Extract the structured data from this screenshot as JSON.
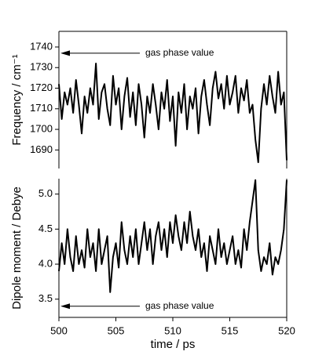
{
  "chart_data": [
    {
      "type": "line",
      "ylabel": "Frequency / cm⁻¹",
      "x": [
        500,
        500.25,
        500.5,
        500.75,
        501,
        501.25,
        501.5,
        501.75,
        502,
        502.25,
        502.5,
        502.75,
        503,
        503.25,
        503.5,
        503.75,
        504,
        504.25,
        504.5,
        504.75,
        505,
        505.25,
        505.5,
        505.75,
        506,
        506.25,
        506.5,
        506.75,
        507,
        507.25,
        507.5,
        507.75,
        508,
        508.25,
        508.5,
        508.75,
        509,
        509.25,
        509.5,
        509.75,
        510,
        510.25,
        510.5,
        510.75,
        511,
        511.25,
        511.5,
        511.75,
        512,
        512.25,
        512.5,
        512.75,
        513,
        513.25,
        513.5,
        513.75,
        514,
        514.25,
        514.5,
        514.75,
        515,
        515.25,
        515.5,
        515.75,
        516,
        516.25,
        516.5,
        516.75,
        517,
        517.25,
        517.5,
        517.75,
        518,
        518.25,
        518.5,
        518.75,
        519,
        519.25,
        519.5,
        519.75,
        520
      ],
      "values": [
        1722,
        1705,
        1718,
        1712,
        1720,
        1708,
        1724,
        1712,
        1698,
        1716,
        1708,
        1720,
        1712,
        1732,
        1705,
        1718,
        1722,
        1710,
        1702,
        1726,
        1712,
        1720,
        1700,
        1716,
        1725,
        1706,
        1718,
        1702,
        1722,
        1712,
        1696,
        1716,
        1708,
        1722,
        1712,
        1700,
        1718,
        1710,
        1724,
        1704,
        1716,
        1692,
        1718,
        1708,
        1722,
        1700,
        1716,
        1710,
        1720,
        1698,
        1716,
        1724,
        1712,
        1702,
        1720,
        1728,
        1715,
        1722,
        1710,
        1726,
        1712,
        1718,
        1726,
        1708,
        1720,
        1714,
        1724,
        1708,
        1712,
        1695,
        1684,
        1710,
        1722,
        1712,
        1726,
        1716,
        1708,
        1728,
        1712,
        1718,
        1685
      ],
      "color": "#000000",
      "xlim": [
        500,
        520
      ],
      "ylim": [
        1681,
        1747.6
      ],
      "yticks": [
        1690,
        1700,
        1710,
        1720,
        1730,
        1740
      ],
      "annotations": [
        {
          "text": "gas phase value",
          "y": 1737
        }
      ]
    },
    {
      "type": "line",
      "ylabel": "Dipole moment / Debye",
      "xlabel": "time / ps",
      "x": [
        500,
        500.25,
        500.5,
        500.75,
        501,
        501.25,
        501.5,
        501.75,
        502,
        502.25,
        502.5,
        502.75,
        503,
        503.25,
        503.5,
        503.75,
        504,
        504.25,
        504.5,
        504.75,
        505,
        505.25,
        505.5,
        505.75,
        506,
        506.25,
        506.5,
        506.75,
        507,
        507.25,
        507.5,
        507.75,
        508,
        508.25,
        508.5,
        508.75,
        509,
        509.25,
        509.5,
        509.75,
        510,
        510.25,
        510.5,
        510.75,
        511,
        511.25,
        511.5,
        511.75,
        512,
        512.25,
        512.5,
        512.75,
        513,
        513.25,
        513.5,
        513.75,
        514,
        514.25,
        514.5,
        514.75,
        515,
        515.25,
        515.5,
        515.75,
        516,
        516.25,
        516.5,
        516.75,
        517,
        517.25,
        517.5,
        517.75,
        518,
        518.25,
        518.5,
        518.75,
        519,
        519.25,
        519.5,
        519.75,
        520
      ],
      "values": [
        3.9,
        4.3,
        4.0,
        4.5,
        4.1,
        3.9,
        4.4,
        4.0,
        4.2,
        3.95,
        4.5,
        4.1,
        4.3,
        3.9,
        4.5,
        4.0,
        4.2,
        4.4,
        3.6,
        4.1,
        4.3,
        3.95,
        4.6,
        4.2,
        4.0,
        4.4,
        4.1,
        4.5,
        4.0,
        4.3,
        4.6,
        4.2,
        4.5,
        4.0,
        4.4,
        4.6,
        4.2,
        4.5,
        4.1,
        4.6,
        4.3,
        4.7,
        4.4,
        4.2,
        4.6,
        4.3,
        4.75,
        4.4,
        4.2,
        4.5,
        4.1,
        4.3,
        3.9,
        4.4,
        4.2,
        4.0,
        4.5,
        4.1,
        4.3,
        4.0,
        4.2,
        4.4,
        4.0,
        4.2,
        3.95,
        4.5,
        4.2,
        4.6,
        4.9,
        5.2,
        4.2,
        3.9,
        4.1,
        4.0,
        4.3,
        3.85,
        4.1,
        4.0,
        4.2,
        4.5,
        5.2
      ],
      "color": "#000000",
      "xlim": [
        500,
        520
      ],
      "xticks": [
        500,
        505,
        510,
        515,
        520
      ],
      "ylim": [
        3.24,
        5.22
      ],
      "yticks": [
        3.5,
        {
          "value": 4.0,
          "label": "4.0"
        },
        4.5,
        {
          "value": 5.0,
          "label": "5.0"
        }
      ],
      "annotations": [
        {
          "text": "gas phase value",
          "y": 3.4
        }
      ]
    }
  ]
}
